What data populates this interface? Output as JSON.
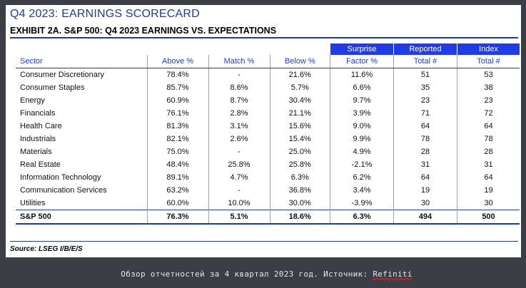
{
  "title": "Q4 2023: EARNINGS SCORECARD",
  "subtitle": "EXHIBIT 2A.  S&P 500: Q4 2023 EARNINGS VS. EXPECTATIONS",
  "table": {
    "group_headers": {
      "surprise": "Surprise",
      "reported": "Reported",
      "index": "Index"
    },
    "columns": [
      "Sector",
      "Above %",
      "Match %",
      "Below %",
      "Factor %",
      "Total #",
      "Total #"
    ],
    "rows": [
      {
        "sector": "Consumer Discretionary",
        "above": "78.4%",
        "match": "-",
        "below": "21.6%",
        "factor": "11.6%",
        "reported": "51",
        "index": "53"
      },
      {
        "sector": "Consumer Staples",
        "above": "85.7%",
        "match": "8.6%",
        "below": "5.7%",
        "factor": "6.6%",
        "reported": "35",
        "index": "38"
      },
      {
        "sector": "Energy",
        "above": "60.9%",
        "match": "8.7%",
        "below": "30.4%",
        "factor": "9.7%",
        "reported": "23",
        "index": "23"
      },
      {
        "sector": "Financials",
        "above": "76.1%",
        "match": "2.8%",
        "below": "21.1%",
        "factor": "3.9%",
        "reported": "71",
        "index": "72"
      },
      {
        "sector": "Health Care",
        "above": "81.3%",
        "match": "3.1%",
        "below": "15.6%",
        "factor": "9.0%",
        "reported": "64",
        "index": "64"
      },
      {
        "sector": "Industrials",
        "above": "82.1%",
        "match": "2.6%",
        "below": "15.4%",
        "factor": "9.9%",
        "reported": "78",
        "index": "78"
      },
      {
        "sector": "Materials",
        "above": "75.0%",
        "match": "-",
        "below": "25.0%",
        "factor": "4.9%",
        "reported": "28",
        "index": "28"
      },
      {
        "sector": "Real Estate",
        "above": "48.4%",
        "match": "25.8%",
        "below": "25.8%",
        "factor": "-2.1%",
        "reported": "31",
        "index": "31"
      },
      {
        "sector": "Information Technology",
        "above": "89.1%",
        "match": "4.7%",
        "below": "6.3%",
        "factor": "6.2%",
        "reported": "64",
        "index": "64"
      },
      {
        "sector": "Communication Services",
        "above": "63.2%",
        "match": "-",
        "below": "36.8%",
        "factor": "3.4%",
        "reported": "19",
        "index": "19"
      },
      {
        "sector": "Utilities",
        "above": "60.0%",
        "match": "10.0%",
        "below": "30.0%",
        "factor": "-3.9%",
        "reported": "30",
        "index": "30"
      }
    ],
    "total": {
      "sector": "S&P 500",
      "above": "76.3%",
      "match": "5.1%",
      "below": "18.6%",
      "factor": "6.3%",
      "reported": "494",
      "index": "500"
    }
  },
  "source": "Source: LSEG I/B/E/S",
  "caption": {
    "text": "Обзор отчетностей за 4 квартал 2023 год. Источник: ",
    "source_name": "Refiniti"
  },
  "colors": {
    "accent": "#1f3ce8",
    "rule": "#1f3c9a",
    "background": "#3b3f45"
  }
}
